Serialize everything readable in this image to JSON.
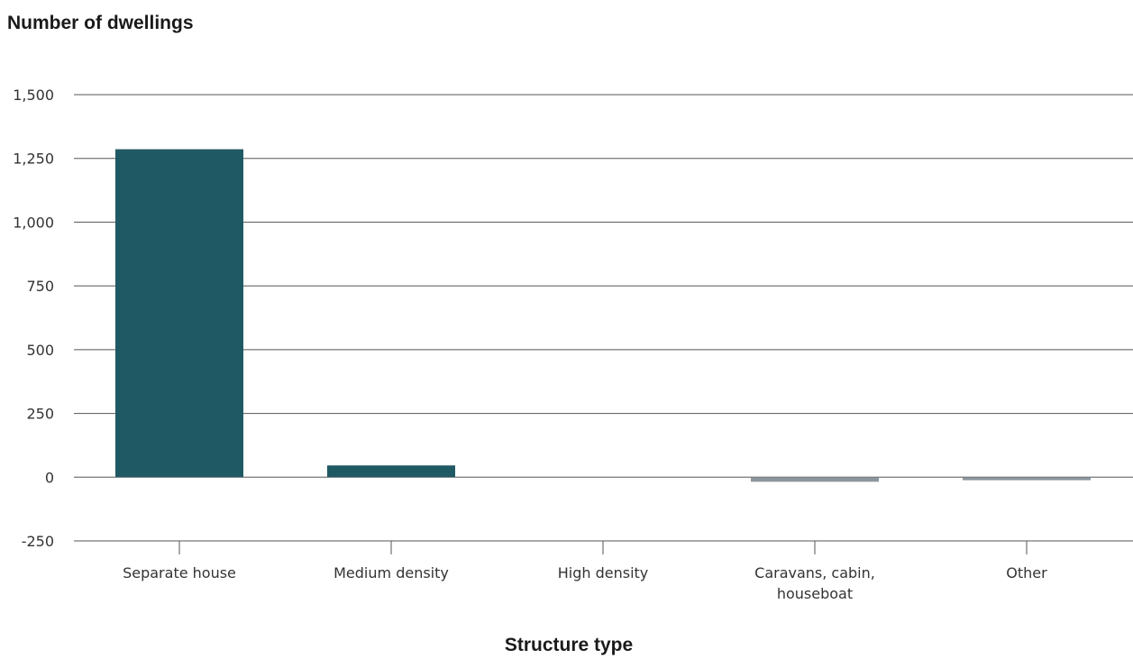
{
  "chart_data": {
    "type": "bar",
    "title": "",
    "ylabel": "Number of dwellings",
    "xlabel": "Structure type",
    "categories": [
      [
        "Separate house"
      ],
      [
        "Medium density"
      ],
      [
        "High density"
      ],
      [
        "Caravans, cabin,",
        "houseboat"
      ],
      [
        "Other"
      ]
    ],
    "values": [
      1286,
      46,
      0,
      -18,
      -12
    ],
    "ylim": [
      -250,
      1500
    ],
    "yticks": [
      -250,
      0,
      250,
      500,
      750,
      1000,
      1250,
      1500
    ],
    "ytick_labels": [
      "-250",
      "0",
      "250",
      "500",
      "750",
      "1,000",
      "1,250",
      "1,500"
    ],
    "grid": true,
    "legend": "none",
    "colors": {
      "positive": "#1f5963",
      "negative": "#8c959d",
      "grid": "#555555"
    }
  }
}
